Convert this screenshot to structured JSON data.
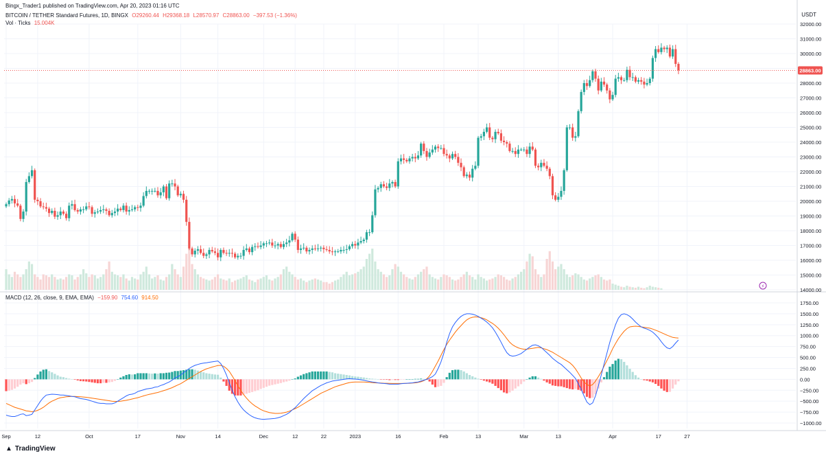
{
  "header": {
    "publisher": "Bingx_Trader1 published on TradingView.com, Apr 20, 2023 01:16 UTC",
    "symbol": "BITCOIN / TETHER Standard Futures, 1D, BINGX",
    "ohlc": {
      "o": "O29260.44",
      "h": "H29368.18",
      "l": "L28570.97",
      "c": "C28863.00",
      "chg": "−397.53 (−1.36%)"
    },
    "vol_label": "Vol · Ticks",
    "vol_value": "15.004K",
    "currency": "USDT"
  },
  "macd_legend": {
    "label": "MACD (12, 26, close, 9, EMA, EMA)",
    "hist": "−159.90",
    "macd": "754.60",
    "signal": "914.50"
  },
  "last_price_label": "28863.00",
  "footer": {
    "brand": "TradingView"
  },
  "colors": {
    "up": "#26a69a",
    "down": "#ef5350",
    "vol_up": "#cfe9dd",
    "vol_down": "#f7d5d5",
    "macd": "#2962ff",
    "signal": "#ff6d00",
    "hist_up_strong": "#26a69a",
    "hist_up_weak": "#b2dfdb",
    "hist_down_strong": "#ff5252",
    "hist_down_weak": "#ffcdd2",
    "grid": "#f0f3fa",
    "text": "#131722"
  },
  "chart_data": [
    {
      "type": "candlestick",
      "title": "BITCOIN / TETHER Standard Futures, 1D, BINGX",
      "ylim": [
        14000,
        32000
      ],
      "y_ticks": [
        "32000.00",
        "31000.00",
        "30000.00",
        "29000.00",
        "28000.00",
        "27000.00",
        "26000.00",
        "25000.00",
        "24000.00",
        "23000.00",
        "22000.00",
        "21000.00",
        "20000.00",
        "19000.00",
        "18000.00",
        "17000.00",
        "16000.00",
        "15000.00",
        "14000.00"
      ],
      "x_labels": [
        "Sep",
        "12",
        "Oct",
        "17",
        "Nov",
        "14",
        "Dec",
        "12",
        "22",
        "2023",
        "16",
        "Feb",
        "13",
        "Mar",
        "13",
        "Apr",
        "17",
        "27"
      ],
      "x_label_days": [
        0,
        11,
        29,
        46,
        61,
        74,
        90,
        101,
        111,
        122,
        137,
        153,
        165,
        181,
        193,
        212,
        228,
        238
      ],
      "start_date": "2022-09-01",
      "last_price": 28863,
      "close": [
        19800,
        20050,
        20150,
        19850,
        19700,
        18800,
        19300,
        21300,
        21700,
        22100,
        20100,
        20000,
        19650,
        19600,
        19500,
        19200,
        19350,
        18950,
        19050,
        19300,
        19150,
        18850,
        19700,
        19800,
        19400,
        19300,
        19450,
        19450,
        19650,
        19600,
        19150,
        19250,
        19300,
        19400,
        19450,
        19350,
        19050,
        19200,
        19300,
        19500,
        19400,
        19700,
        19300,
        19400,
        19450,
        19600,
        19550,
        19700,
        20350,
        20700,
        20700,
        20700,
        20700,
        20400,
        20600,
        21000,
        20200,
        21200,
        21200,
        21000,
        20400,
        20500,
        20100,
        18600,
        16800,
        16400,
        16650,
        16750,
        16500,
        16300,
        16400,
        16700,
        16600,
        16500,
        16200,
        16700,
        16500,
        16450,
        16500,
        16450,
        16200,
        16300,
        16300,
        16700,
        16800,
        16550,
        16900,
        16950,
        16900,
        17000,
        17150,
        17150,
        17200,
        17000,
        17000,
        17100,
        16900,
        17100,
        17200,
        17350,
        17800,
        17400,
        16700,
        16800,
        16850,
        16600,
        16700,
        16800,
        16750,
        16800,
        16850,
        16750,
        16700,
        16600,
        16550,
        16600,
        16600,
        16700,
        16700,
        16750,
        16950,
        17100,
        17000,
        17200,
        17300,
        17400,
        17900,
        17900,
        19050,
        20800,
        20900,
        21150,
        21000,
        20900,
        21200,
        21300,
        21000,
        22700,
        22900,
        22800,
        22700,
        22900,
        23000,
        22900,
        23100,
        23900,
        23400,
        23000,
        23300,
        23500,
        23700,
        23600,
        23600,
        23200,
        23100,
        22900,
        23200,
        23000,
        22600,
        22300,
        21700,
        21800,
        21600,
        22200,
        22400,
        24300,
        24400,
        24700,
        25000,
        24300,
        24200,
        24700,
        24600,
        24100,
        24000,
        23900,
        23400,
        23400,
        23200,
        23500,
        23500,
        23500,
        23200,
        23700,
        23500,
        22400,
        22300,
        22600,
        22400,
        22200,
        21700,
        20400,
        20100,
        20300,
        20700,
        22100,
        25000,
        25000,
        24300,
        24400,
        26100,
        27400,
        28000,
        27800,
        28200,
        28800,
        28300,
        27500,
        28100,
        27900,
        27500,
        26900,
        27200,
        28300,
        28400,
        28200,
        28200,
        28900,
        28400,
        28400,
        28100,
        28200,
        28100,
        27900,
        28000,
        28300,
        29700,
        30300,
        30100,
        30400,
        30300,
        30400,
        29800,
        30300,
        29300,
        28863
      ]
    },
    {
      "type": "bar",
      "title": "MACD (12, 26, close, 9, EMA, EMA)",
      "ylim": [
        -1000,
        1750
      ],
      "y_ticks": [
        "1750.00",
        "1500.00",
        "1250.00",
        "1000.00",
        "750.00",
        "500.00",
        "250.00",
        "0.00",
        "−250.00",
        "−500.00",
        "−750.00",
        "−1000.00"
      ],
      "series": [
        {
          "name": "MACD",
          "values": [
            -820,
            -840,
            -850,
            -850,
            -830,
            -800,
            -790,
            -830,
            -820,
            -800,
            -700,
            -600,
            -500,
            -420,
            -360,
            -350,
            -340,
            -345,
            -350,
            -360,
            -360,
            -370,
            -380,
            -390,
            -400,
            -420,
            -440,
            -450,
            -460,
            -480,
            -500,
            -520,
            -540,
            -550,
            -550,
            -560,
            -560,
            -560,
            -540,
            -500,
            -460,
            -420,
            -380,
            -350,
            -340,
            -320,
            -280,
            -260,
            -240,
            -220,
            -210,
            -200,
            -180,
            -170,
            -140,
            -120,
            -90,
            -60,
            -20,
            30,
            60,
            100,
            150,
            200,
            250,
            290,
            320,
            340,
            360,
            370,
            380,
            390,
            400,
            410,
            420,
            360,
            250,
            100,
            -80,
            -250,
            -400,
            -520,
            -620,
            -700,
            -760,
            -810,
            -850,
            -880,
            -900,
            -910,
            -915,
            -910,
            -905,
            -900,
            -895,
            -880,
            -860,
            -830,
            -800,
            -760,
            -700,
            -650,
            -580,
            -510,
            -440,
            -380,
            -320,
            -260,
            -220,
            -180,
            -140,
            -110,
            -80,
            -60,
            -40,
            -30,
            -20,
            -10,
            0,
            10,
            15,
            10,
            5,
            0,
            -10,
            -20,
            -35,
            -50,
            -60,
            -70,
            -80,
            -90,
            -95,
            -100,
            -110,
            -110,
            -110,
            -110,
            -100,
            -95,
            -90,
            -85,
            -80,
            -70,
            -60,
            -40,
            -20,
            0,
            30,
            60,
            120,
            250,
            400,
            600,
            850,
            1050,
            1200,
            1300,
            1380,
            1440,
            1480,
            1500,
            1500,
            1490,
            1470,
            1440,
            1400,
            1360,
            1310,
            1250,
            1180,
            1080,
            970,
            850,
            720,
            610,
            550,
            530,
            540,
            560,
            590,
            640,
            690,
            740,
            780,
            790,
            770,
            730,
            670,
            610,
            550,
            480,
            430,
            380,
            340,
            280,
            220,
            160,
            90,
            20,
            -100,
            -230,
            -380,
            -520,
            -580,
            -540,
            -380,
            -150,
            100,
            350,
            600,
            850,
            1050,
            1250,
            1400,
            1480,
            1500,
            1480,
            1440,
            1380,
            1310,
            1250,
            1200,
            1170,
            1150,
            1120,
            1080,
            1020,
            950,
            860,
            780,
            720,
            700,
            750,
            830,
            900,
            960,
            1000,
            1030,
            1050,
            1050,
            1000,
            950,
            880,
            754.6
          ]
        },
        {
          "name": "Signal",
          "values": [
            -550,
            -580,
            -610,
            -640,
            -660,
            -680,
            -700,
            -720,
            -730,
            -740,
            -730,
            -710,
            -680,
            -640,
            -590,
            -540,
            -500,
            -470,
            -440,
            -420,
            -410,
            -400,
            -395,
            -390,
            -390,
            -395,
            -400,
            -405,
            -410,
            -420,
            -430,
            -440,
            -450,
            -460,
            -470,
            -480,
            -490,
            -500,
            -505,
            -505,
            -500,
            -490,
            -480,
            -465,
            -450,
            -435,
            -420,
            -400,
            -380,
            -360,
            -345,
            -330,
            -315,
            -300,
            -280,
            -260,
            -240,
            -215,
            -190,
            -160,
            -130,
            -100,
            -60,
            -20,
            20,
            60,
            100,
            140,
            180,
            210,
            240,
            260,
            280,
            300,
            315,
            320,
            300,
            250,
            180,
            80,
            -30,
            -150,
            -250,
            -350,
            -430,
            -500,
            -560,
            -610,
            -650,
            -690,
            -720,
            -740,
            -760,
            -770,
            -780,
            -780,
            -775,
            -765,
            -750,
            -730,
            -700,
            -670,
            -640,
            -600,
            -560,
            -520,
            -480,
            -440,
            -400,
            -360,
            -320,
            -290,
            -260,
            -230,
            -200,
            -170,
            -150,
            -130,
            -110,
            -90,
            -75,
            -65,
            -60,
            -60,
            -60,
            -62,
            -65,
            -70,
            -75,
            -80,
            -82,
            -85,
            -88,
            -90,
            -92,
            -95,
            -95,
            -95,
            -95,
            -94,
            -92,
            -90,
            -85,
            -80,
            -70,
            -55,
            -30,
            10,
            80,
            180,
            300,
            420,
            550,
            680,
            800,
            900,
            990,
            1080,
            1160,
            1230,
            1300,
            1360,
            1400,
            1420,
            1430,
            1425,
            1410,
            1390,
            1360,
            1320,
            1280,
            1230,
            1170,
            1100,
            1020,
            930,
            850,
            790,
            750,
            720,
            700,
            690,
            690,
            700,
            710,
            720,
            730,
            720,
            700,
            680,
            650,
            620,
            580,
            540,
            500,
            460,
            420,
            380,
            320,
            240,
            140,
            30,
            -60,
            -120,
            -150,
            -120,
            -40,
            60,
            170,
            300,
            430,
            560,
            700,
            820,
            930,
            1020,
            1100,
            1160,
            1200,
            1210,
            1215,
            1210,
            1200,
            1190,
            1180,
            1170,
            1150,
            1125,
            1100,
            1070,
            1040,
            1010,
            985,
            960,
            950,
            945,
            950,
            960,
            980,
            1000,
            1010,
            1000,
            980,
            950,
            914.5
          ]
        }
      ]
    },
    {
      "type": "bar",
      "title": "Vol · Ticks",
      "ylim": [
        0,
        200
      ],
      "values": [
        40,
        30,
        25,
        35,
        30,
        25,
        30,
        40,
        55,
        50,
        30,
        25,
        20,
        30,
        28,
        25,
        30,
        25,
        20,
        22,
        20,
        25,
        30,
        28,
        20,
        25,
        30,
        40,
        32,
        25,
        30,
        28,
        22,
        25,
        30,
        40,
        55,
        35,
        30,
        28,
        25,
        30,
        22,
        18,
        25,
        22,
        20,
        30,
        35,
        45,
        30,
        22,
        25,
        28,
        20,
        18,
        25,
        30,
        50,
        40,
        30,
        25,
        45,
        70,
        95,
        50,
        40,
        30,
        25,
        22,
        20,
        18,
        20,
        25,
        30,
        22,
        20,
        18,
        22,
        15,
        18,
        20,
        22,
        25,
        28,
        20,
        18,
        15,
        20,
        22,
        25,
        28,
        20,
        18,
        22,
        25,
        30,
        40,
        45,
        35,
        30,
        25,
        20,
        22,
        18,
        15,
        18,
        20,
        22,
        20,
        18,
        15,
        15,
        12,
        15,
        18,
        20,
        25,
        30,
        35,
        28,
        30,
        32,
        35,
        40,
        45,
        60,
        70,
        80,
        55,
        40,
        35,
        30,
        25,
        28,
        40,
        50,
        45,
        35,
        30,
        25,
        22,
        20,
        25,
        30,
        35,
        40,
        45,
        30,
        25,
        22,
        20,
        25,
        30,
        28,
        25,
        20,
        18,
        20,
        25,
        30,
        35,
        28,
        25,
        20,
        30,
        25,
        22,
        18,
        20,
        22,
        25,
        30,
        28,
        25,
        20,
        18,
        22,
        25,
        30,
        35,
        40,
        55,
        70,
        65,
        40,
        30,
        25,
        30,
        60,
        75,
        55,
        40,
        45,
        50,
        40,
        30,
        25,
        28,
        32,
        30,
        25,
        20,
        18,
        22,
        25,
        28,
        30,
        25,
        20,
        18,
        20,
        12,
        10,
        8,
        6,
        5,
        8,
        6,
        5,
        4,
        6,
        4,
        3,
        5,
        8,
        6,
        5,
        4,
        3
      ]
    }
  ]
}
